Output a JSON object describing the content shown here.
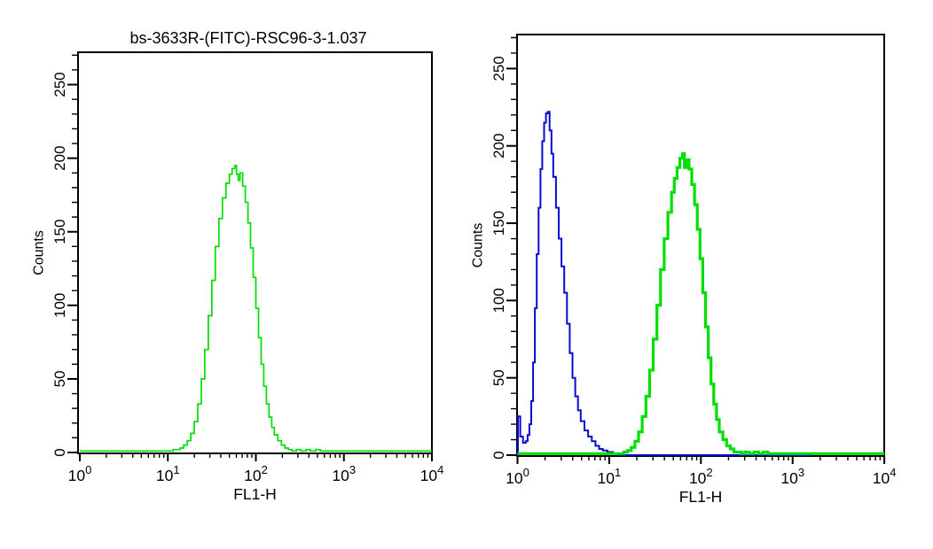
{
  "figure": {
    "description": "Two flow cytometry overlay histograms, FL1-H fluorescence vs cell counts",
    "background": "#ffffff",
    "axis_color": "#000000"
  },
  "chart_data": [
    {
      "type": "line",
      "title": "bs-3633R-(FITC)-RSC96-3-1.037",
      "xlabel": "FL1-H",
      "ylabel": "Counts",
      "x_scale": "log10",
      "x_range": [
        1,
        10000
      ],
      "x_ticks": [
        "10^0",
        "10^1",
        "10^2",
        "10^3",
        "10^4"
      ],
      "y_range": [
        0,
        272
      ],
      "y_ticks": [
        0,
        50,
        100,
        150,
        200,
        250
      ],
      "y_minor_step": 10,
      "grid": false,
      "legend": "none",
      "series": [
        {
          "name": "green-histogram-fitc-stained",
          "color": "#00DF00",
          "stroke_width": 1.7,
          "peak": {
            "x": 58,
            "counts": 195
          },
          "points_log10x_counts": [
            [
              0.0,
              1
            ],
            [
              0.3,
              1
            ],
            [
              0.6,
              1
            ],
            [
              0.85,
              1
            ],
            [
              1.0,
              1
            ],
            [
              1.06,
              2
            ],
            [
              1.1,
              2
            ],
            [
              1.14,
              3
            ],
            [
              1.18,
              5
            ],
            [
              1.22,
              8
            ],
            [
              1.26,
              13
            ],
            [
              1.3,
              21
            ],
            [
              1.34,
              33
            ],
            [
              1.38,
              50
            ],
            [
              1.42,
              70
            ],
            [
              1.46,
              93
            ],
            [
              1.5,
              117
            ],
            [
              1.54,
              140
            ],
            [
              1.58,
              159
            ],
            [
              1.62,
              173
            ],
            [
              1.66,
              183
            ],
            [
              1.7,
              189
            ],
            [
              1.73,
              193
            ],
            [
              1.76,
              195
            ],
            [
              1.78,
              189
            ],
            [
              1.8,
              185
            ],
            [
              1.82,
              190
            ],
            [
              1.85,
              181
            ],
            [
              1.88,
              170
            ],
            [
              1.91,
              156
            ],
            [
              1.94,
              139
            ],
            [
              1.97,
              119
            ],
            [
              2.0,
              98
            ],
            [
              2.03,
              78
            ],
            [
              2.06,
              60
            ],
            [
              2.09,
              45
            ],
            [
              2.12,
              33
            ],
            [
              2.15,
              24
            ],
            [
              2.18,
              17
            ],
            [
              2.21,
              12
            ],
            [
              2.25,
              8
            ],
            [
              2.29,
              5
            ],
            [
              2.33,
              3
            ],
            [
              2.37,
              2
            ],
            [
              2.41,
              1
            ],
            [
              2.46,
              2
            ],
            [
              2.51,
              1
            ],
            [
              2.57,
              2
            ],
            [
              2.62,
              1
            ],
            [
              2.68,
              2
            ],
            [
              2.73,
              1
            ],
            [
              3.0,
              1
            ],
            [
              3.5,
              1
            ],
            [
              4.0,
              1
            ]
          ]
        }
      ]
    },
    {
      "type": "line",
      "title": "",
      "xlabel": "FL1-H",
      "ylabel": "Counts",
      "x_scale": "log10",
      "x_range": [
        1,
        10000
      ],
      "x_ticks": [
        "10^0",
        "10^1",
        "10^2",
        "10^3",
        "10^4"
      ],
      "y_range": [
        0,
        272
      ],
      "y_ticks": [
        0,
        50,
        100,
        150,
        200,
        250
      ],
      "y_minor_step": 10,
      "grid": false,
      "legend": "none",
      "series": [
        {
          "name": "blue-histogram-control",
          "color": "#0B0BD0",
          "stroke_width": 2,
          "peak": {
            "x": 2,
            "counts": 222
          },
          "points_log10x_counts": [
            [
              0.0,
              0
            ],
            [
              0.005,
              25
            ],
            [
              0.03,
              12
            ],
            [
              0.06,
              8
            ],
            [
              0.09,
              9
            ],
            [
              0.11,
              13
            ],
            [
              0.13,
              20
            ],
            [
              0.15,
              35
            ],
            [
              0.17,
              60
            ],
            [
              0.19,
              95
            ],
            [
              0.21,
              130
            ],
            [
              0.23,
              160
            ],
            [
              0.25,
              185
            ],
            [
              0.27,
              203
            ],
            [
              0.29,
              215
            ],
            [
              0.31,
              221
            ],
            [
              0.33,
              222
            ],
            [
              0.35,
              210
            ],
            [
              0.37,
              195
            ],
            [
              0.39,
              180
            ],
            [
              0.42,
              160
            ],
            [
              0.45,
              140
            ],
            [
              0.48,
              122
            ],
            [
              0.51,
              105
            ],
            [
              0.54,
              85
            ],
            [
              0.57,
              66
            ],
            [
              0.6,
              50
            ],
            [
              0.63,
              38
            ],
            [
              0.66,
              29
            ],
            [
              0.69,
              22
            ],
            [
              0.73,
              16
            ],
            [
              0.77,
              12
            ],
            [
              0.81,
              9
            ],
            [
              0.85,
              6
            ],
            [
              0.89,
              4
            ],
            [
              0.93,
              3
            ],
            [
              0.98,
              2
            ],
            [
              1.04,
              1
            ],
            [
              1.1,
              0
            ],
            [
              2.0,
              0
            ],
            [
              3.22,
              0
            ]
          ]
        },
        {
          "name": "green-histogram-fitc-stained",
          "color": "#00DF00",
          "stroke_width": 3.2,
          "peak": {
            "x": 60,
            "counts": 195
          },
          "points_log10x_counts": [
            [
              0.0,
              1
            ],
            [
              0.3,
              1
            ],
            [
              0.6,
              1
            ],
            [
              0.9,
              1
            ],
            [
              1.1,
              1
            ],
            [
              1.16,
              2
            ],
            [
              1.2,
              3
            ],
            [
              1.24,
              5
            ],
            [
              1.28,
              9
            ],
            [
              1.32,
              15
            ],
            [
              1.36,
              25
            ],
            [
              1.4,
              38
            ],
            [
              1.44,
              55
            ],
            [
              1.48,
              75
            ],
            [
              1.52,
              97
            ],
            [
              1.56,
              120
            ],
            [
              1.6,
              140
            ],
            [
              1.64,
              157
            ],
            [
              1.68,
              170
            ],
            [
              1.71,
              179
            ],
            [
              1.74,
              186
            ],
            [
              1.77,
              192
            ],
            [
              1.8,
              195
            ],
            [
              1.82,
              186
            ],
            [
              1.84,
              191
            ],
            [
              1.87,
              185
            ],
            [
              1.9,
              175
            ],
            [
              1.93,
              162
            ],
            [
              1.96,
              146
            ],
            [
              1.99,
              127
            ],
            [
              2.02,
              105
            ],
            [
              2.05,
              83
            ],
            [
              2.08,
              63
            ],
            [
              2.11,
              46
            ],
            [
              2.14,
              33
            ],
            [
              2.17,
              23
            ],
            [
              2.2,
              15
            ],
            [
              2.24,
              10
            ],
            [
              2.28,
              6
            ],
            [
              2.32,
              4
            ],
            [
              2.36,
              2
            ],
            [
              2.4,
              2
            ],
            [
              2.44,
              1
            ],
            [
              2.48,
              2
            ],
            [
              2.53,
              1
            ],
            [
              2.58,
              2
            ],
            [
              2.63,
              1
            ],
            [
              2.68,
              2
            ],
            [
              2.73,
              1
            ],
            [
              3.0,
              1
            ],
            [
              3.5,
              1
            ],
            [
              4.0,
              1
            ]
          ]
        }
      ]
    }
  ]
}
